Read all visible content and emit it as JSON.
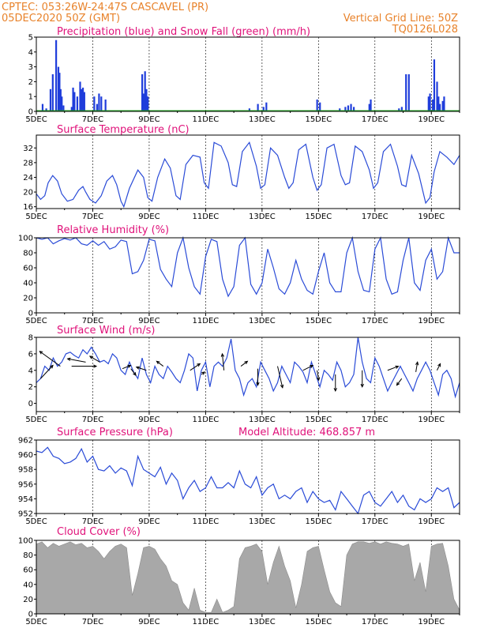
{
  "header": {
    "line1_left": "CPTEC:  053:26W-24:47S  CASCAVEL (PR)",
    "line2_left": "05DEC2020 50Z (GMT)",
    "line2_right": "Vertical Grid Line: 50Z",
    "line3_right": "TQ0126L028",
    "altitude_label": "Model Altitude: 468.857 m"
  },
  "x_ticks": [
    "5DEC",
    "7DEC",
    "9DEC",
    "11DEC",
    "13DEC",
    "15DEC",
    "17DEC",
    "19DEC"
  ],
  "colors": {
    "line": "#2a4bd7",
    "precip": "#1f3ddb",
    "snow": "#22aa22",
    "cloud": "#a8a8a8",
    "title": "#e0127a",
    "header": "#e8822a"
  },
  "chart_data": [
    {
      "id": "precipitation",
      "type": "bar",
      "title": "Precipitation (blue) and Snow Fall (green) (mm/h)",
      "x_unit": "days since 5DEC 00Z",
      "ylim": [
        0,
        5
      ],
      "yticks": [
        0,
        1,
        2,
        3,
        4,
        5
      ],
      "xlim": [
        0,
        15
      ],
      "series": [
        {
          "name": "Precipitation",
          "x": [
            0.22,
            0.35,
            0.5,
            0.58,
            0.7,
            0.78,
            0.82,
            0.86,
            0.9,
            0.96,
            1.25,
            1.3,
            1.35,
            1.45,
            1.55,
            1.6,
            1.65,
            1.7,
            2.05,
            2.15,
            2.22,
            2.3,
            2.45,
            3.75,
            3.8,
            3.85,
            3.9,
            3.95,
            7.55,
            7.85,
            8.05,
            8.15,
            9.95,
            10.05,
            10.75,
            10.95,
            11.05,
            11.15,
            11.25,
            11.8,
            11.85,
            12.85,
            12.95,
            13.1,
            13.2,
            13.9,
            13.95,
            14.05,
            14.1,
            14.2,
            14.25,
            14.3,
            14.4,
            14.45
          ],
          "values": [
            0.5,
            0.2,
            1.5,
            2.5,
            4.8,
            3.0,
            2.6,
            1.5,
            1.0,
            0.4,
            0.3,
            1.6,
            1.3,
            1.0,
            2.0,
            1.5,
            1.6,
            1.3,
            1.0,
            0.5,
            1.2,
            1.0,
            0.8,
            2.5,
            1.2,
            2.7,
            1.5,
            1.0,
            0.2,
            0.5,
            0.3,
            0.6,
            0.8,
            0.6,
            0.2,
            0.3,
            0.4,
            0.5,
            0.3,
            0.5,
            0.8,
            0.2,
            0.3,
            2.5,
            2.5,
            1.0,
            1.2,
            0.8,
            3.5,
            2.0,
            1.0,
            0.5,
            0.7,
            1.0
          ]
        },
        {
          "name": "Snow Fall",
          "x": [
            0,
            15
          ],
          "values": [
            0.05,
            0.05
          ]
        }
      ]
    },
    {
      "id": "temperature",
      "type": "line",
      "title": "Surface Temperature (nC)",
      "x_unit": "days since 5DEC 00Z",
      "ylim": [
        15.5,
        35.5
      ],
      "yticks": [
        16,
        20,
        24,
        28,
        32
      ],
      "xlim": [
        0,
        15
      ],
      "x": [
        0,
        0.15,
        0.3,
        0.42,
        0.58,
        0.75,
        0.9,
        1.1,
        1.3,
        1.5,
        1.65,
        1.75,
        1.9,
        2.1,
        2.3,
        2.5,
        2.7,
        2.85,
        3.0,
        3.1,
        3.3,
        3.6,
        3.8,
        3.95,
        4.1,
        4.3,
        4.55,
        4.75,
        4.95,
        5.1,
        5.3,
        5.55,
        5.8,
        5.95,
        6.1,
        6.3,
        6.55,
        6.8,
        6.95,
        7.1,
        7.3,
        7.55,
        7.8,
        7.95,
        8.1,
        8.3,
        8.55,
        8.8,
        8.95,
        9.1,
        9.3,
        9.55,
        9.8,
        9.95,
        10.1,
        10.3,
        10.55,
        10.8,
        10.95,
        11.1,
        11.3,
        11.55,
        11.8,
        11.95,
        12.1,
        12.3,
        12.55,
        12.8,
        12.95,
        13.1,
        13.3,
        13.55,
        13.8,
        13.95,
        14.1,
        14.3,
        14.55,
        14.8,
        15.0
      ],
      "values": [
        19.5,
        18.0,
        19.0,
        22.5,
        24.5,
        23.0,
        19.5,
        17.5,
        18.0,
        20.5,
        21.5,
        20.0,
        18.0,
        17.0,
        19.0,
        23.0,
        24.5,
        22.0,
        17.5,
        16.0,
        21.0,
        26.0,
        24.0,
        18.5,
        17.5,
        24.0,
        29.0,
        26.5,
        19.0,
        18.0,
        27.5,
        30.0,
        29.5,
        22.5,
        21.0,
        33.5,
        32.5,
        28.0,
        22.0,
        21.5,
        31.0,
        33.5,
        27.0,
        21.0,
        22.0,
        32.0,
        30.0,
        24.0,
        21.0,
        22.5,
        31.5,
        33.0,
        24.0,
        20.5,
        22.0,
        32.0,
        33.0,
        24.5,
        22.0,
        22.5,
        32.5,
        31.0,
        26.0,
        21.0,
        22.5,
        31.0,
        33.0,
        27.0,
        22.0,
        21.5,
        30.0,
        25.0,
        17.0,
        18.5,
        25.5,
        31.0,
        29.5,
        27.5,
        30.0
      ]
    },
    {
      "id": "humidity",
      "type": "line",
      "title": "Relative Humidity (%)",
      "x_unit": "days since 5DEC 00Z",
      "ylim": [
        0,
        100
      ],
      "yticks": [
        0,
        20,
        40,
        60,
        80,
        100
      ],
      "xlim": [
        0,
        15
      ],
      "x": [
        0,
        0.2,
        0.4,
        0.6,
        0.8,
        1.0,
        1.2,
        1.4,
        1.6,
        1.8,
        2.0,
        2.2,
        2.4,
        2.6,
        2.8,
        3.0,
        3.2,
        3.4,
        3.6,
        3.8,
        4.0,
        4.2,
        4.4,
        4.6,
        4.8,
        5.0,
        5.2,
        5.4,
        5.6,
        5.8,
        6.0,
        6.2,
        6.4,
        6.6,
        6.8,
        7.0,
        7.2,
        7.4,
        7.6,
        7.8,
        8.0,
        8.2,
        8.4,
        8.6,
        8.8,
        9.0,
        9.2,
        9.4,
        9.6,
        9.8,
        10.0,
        10.2,
        10.4,
        10.6,
        10.8,
        11.0,
        11.2,
        11.4,
        11.6,
        11.8,
        12.0,
        12.2,
        12.4,
        12.6,
        12.8,
        13.0,
        13.2,
        13.4,
        13.6,
        13.8,
        14.0,
        14.2,
        14.4,
        14.6,
        14.8,
        15.0
      ],
      "values": [
        100,
        98,
        100,
        92,
        96,
        99,
        97,
        100,
        92,
        90,
        96,
        90,
        95,
        85,
        88,
        97,
        95,
        52,
        55,
        70,
        98,
        96,
        58,
        45,
        35,
        80,
        100,
        60,
        35,
        25,
        75,
        98,
        95,
        45,
        22,
        35,
        90,
        100,
        38,
        25,
        40,
        85,
        60,
        32,
        25,
        40,
        70,
        45,
        30,
        25,
        55,
        80,
        40,
        28,
        28,
        80,
        100,
        55,
        30,
        28,
        85,
        100,
        45,
        25,
        28,
        70,
        100,
        40,
        30,
        70,
        85,
        45,
        55,
        100,
        80,
        80
      ]
    },
    {
      "id": "wind",
      "type": "line",
      "title": "Surface Wind (m/s)",
      "x_unit": "days since 5DEC 00Z",
      "ylim": [
        -1,
        8
      ],
      "yticks": [
        0,
        2,
        4,
        6,
        8
      ],
      "xlim": [
        0,
        15
      ],
      "x": [
        0,
        0.15,
        0.3,
        0.45,
        0.6,
        0.75,
        0.9,
        1.05,
        1.2,
        1.35,
        1.5,
        1.65,
        1.8,
        1.95,
        2.1,
        2.25,
        2.4,
        2.55,
        2.7,
        2.85,
        3.0,
        3.15,
        3.3,
        3.45,
        3.6,
        3.75,
        3.9,
        4.05,
        4.2,
        4.35,
        4.5,
        4.65,
        4.8,
        4.95,
        5.1,
        5.25,
        5.4,
        5.55,
        5.7,
        5.85,
        6.0,
        6.15,
        6.3,
        6.45,
        6.6,
        6.75,
        6.9,
        7.05,
        7.2,
        7.35,
        7.5,
        7.65,
        7.8,
        7.95,
        8.1,
        8.25,
        8.4,
        8.55,
        8.7,
        8.85,
        9.0,
        9.15,
        9.3,
        9.45,
        9.6,
        9.75,
        9.9,
        10.05,
        10.2,
        10.35,
        10.5,
        10.65,
        10.8,
        10.95,
        11.1,
        11.25,
        11.4,
        11.55,
        11.7,
        11.85,
        12.0,
        12.15,
        12.3,
        12.45,
        12.6,
        12.75,
        12.9,
        13.05,
        13.2,
        13.35,
        13.5,
        13.65,
        13.8,
        13.95,
        14.1,
        14.25,
        14.4,
        14.55,
        14.7,
        14.85,
        15.0
      ],
      "values": [
        2.5,
        3.0,
        4.5,
        4.0,
        5.5,
        4.5,
        5.0,
        6.0,
        6.2,
        5.8,
        5.5,
        6.5,
        6.0,
        6.8,
        6.0,
        5.0,
        5.2,
        4.8,
        6.0,
        5.5,
        4.0,
        3.5,
        5.0,
        3.8,
        3.0,
        5.5,
        3.5,
        2.5,
        4.5,
        3.5,
        3.0,
        4.5,
        3.8,
        3.0,
        2.5,
        4.0,
        6.0,
        5.5,
        1.5,
        4.0,
        5.0,
        2.0,
        4.5,
        5.0,
        4.5,
        5.5,
        7.8,
        4.0,
        3.0,
        1.0,
        2.5,
        3.0,
        2.0,
        5.0,
        4.0,
        3.0,
        1.5,
        2.5,
        4.5,
        3.5,
        2.5,
        5.0,
        4.5,
        3.8,
        2.5,
        5.0,
        3.5,
        2.0,
        4.0,
        3.5,
        2.8,
        5.0,
        4.0,
        2.0,
        2.5,
        3.5,
        8.0,
        5.0,
        3.0,
        2.5,
        5.5,
        4.5,
        3.0,
        1.5,
        2.5,
        3.5,
        4.5,
        3.5,
        2.5,
        1.5,
        3.0,
        4.0,
        5.0,
        4.0,
        2.5,
        1.0,
        3.5,
        4.0,
        3.0,
        0.8,
        2.5
      ],
      "arrows": {
        "x": [
          0.15,
          0.85,
          1.25,
          1.75,
          2.25,
          3.05,
          3.35,
          3.9,
          4.5,
          5.45,
          5.85,
          6.65,
          7.25,
          7.85,
          8.55,
          9.45,
          9.95,
          10.6,
          11.55,
          12.45,
          12.95,
          13.45,
          14.2
        ],
        "values": [
          3.0,
          4.5,
          4.5,
          5.0,
          5.0,
          4.2,
          4.2,
          4.0,
          4.5,
          4.0,
          3.5,
          4.0,
          4.5,
          4.2,
          4.5,
          4.0,
          4.0,
          3.5,
          4.0,
          4.0,
          3.0,
          3.8,
          4.0
        ],
        "u": [
          1.5,
          -2.5,
          3.0,
          -2.2,
          -1.2,
          1.0,
          0.6,
          -1.2,
          -0.8,
          1.2,
          0.4,
          -0.2,
          0.8,
          0.0,
          0.6,
          1.2,
          0.2,
          0.0,
          0.0,
          1.3,
          -0.6,
          0.2,
          0.4
        ],
        "v": [
          1.6,
          1.8,
          0.0,
          0.4,
          0.7,
          0.4,
          -0.8,
          0.4,
          0.6,
          0.8,
          0.3,
          2.0,
          0.6,
          -2.0,
          -2.6,
          0.6,
          -1.2,
          -2.0,
          -2.0,
          0.5,
          -0.8,
          1.2,
          0.8
        ]
      }
    },
    {
      "id": "pressure",
      "type": "line",
      "title": "Surface Pressure (hPa)",
      "x_unit": "days since 5DEC 00Z",
      "ylim": [
        952,
        962
      ],
      "yticks": [
        952,
        954,
        956,
        958,
        960,
        962
      ],
      "xlim": [
        0,
        15
      ],
      "x": [
        0,
        0.2,
        0.4,
        0.6,
        0.8,
        1.0,
        1.2,
        1.4,
        1.6,
        1.8,
        2.0,
        2.2,
        2.4,
        2.6,
        2.8,
        3.0,
        3.2,
        3.4,
        3.6,
        3.8,
        4.0,
        4.2,
        4.4,
        4.6,
        4.8,
        5.0,
        5.2,
        5.4,
        5.6,
        5.8,
        6.0,
        6.2,
        6.4,
        6.6,
        6.8,
        7.0,
        7.2,
        7.4,
        7.6,
        7.8,
        8.0,
        8.2,
        8.4,
        8.6,
        8.8,
        9.0,
        9.2,
        9.4,
        9.6,
        9.8,
        10.0,
        10.2,
        10.4,
        10.6,
        10.8,
        11.0,
        11.2,
        11.4,
        11.6,
        11.8,
        12.0,
        12.2,
        12.4,
        12.6,
        12.8,
        13.0,
        13.2,
        13.4,
        13.6,
        13.8,
        14.0,
        14.2,
        14.4,
        14.6,
        14.8,
        15.0
      ],
      "values": [
        960.5,
        960.3,
        961.0,
        959.8,
        959.5,
        958.8,
        959.0,
        959.5,
        960.8,
        959.0,
        959.8,
        958.0,
        957.8,
        958.5,
        957.5,
        958.2,
        957.8,
        955.8,
        959.8,
        958.0,
        957.5,
        957.0,
        958.3,
        956.0,
        957.5,
        956.5,
        954.0,
        955.5,
        956.5,
        955.0,
        955.5,
        957.0,
        955.5,
        955.5,
        956.2,
        955.5,
        957.8,
        956.0,
        955.5,
        957.0,
        954.5,
        955.5,
        956.0,
        954.0,
        954.5,
        954.0,
        955.0,
        955.5,
        953.5,
        955.0,
        954.0,
        953.5,
        953.8,
        952.5,
        955.0,
        954.0,
        953.0,
        952.0,
        954.5,
        955.0,
        953.5,
        953.0,
        954.0,
        955.0,
        953.5,
        954.5,
        953.0,
        952.5,
        954.0,
        953.5,
        954.0,
        955.5,
        955.0,
        955.5,
        952.8,
        953.5
      ]
    },
    {
      "id": "cloud",
      "type": "area",
      "title": "Cloud Cover (%)",
      "x_unit": "days since 5DEC 00Z",
      "ylim": [
        0,
        100
      ],
      "yticks": [
        0,
        20,
        40,
        60,
        80,
        100
      ],
      "xlim": [
        0,
        15
      ],
      "x": [
        0,
        0.2,
        0.4,
        0.6,
        0.8,
        1.0,
        1.2,
        1.4,
        1.6,
        1.8,
        2.0,
        2.2,
        2.4,
        2.6,
        2.8,
        3.0,
        3.2,
        3.4,
        3.6,
        3.8,
        4.0,
        4.2,
        4.4,
        4.6,
        4.8,
        5.0,
        5.2,
        5.4,
        5.6,
        5.8,
        6.0,
        6.2,
        6.4,
        6.6,
        6.8,
        7.0,
        7.2,
        7.4,
        7.6,
        7.8,
        8.0,
        8.2,
        8.4,
        8.6,
        8.8,
        9.0,
        9.2,
        9.4,
        9.6,
        9.8,
        10.0,
        10.2,
        10.4,
        10.6,
        10.8,
        11.0,
        11.2,
        11.4,
        11.6,
        11.8,
        12.0,
        12.2,
        12.4,
        12.6,
        12.8,
        13.0,
        13.2,
        13.4,
        13.6,
        13.8,
        14.0,
        14.2,
        14.4,
        14.6,
        14.8,
        15.0
      ],
      "values": [
        95,
        98,
        90,
        96,
        92,
        95,
        98,
        94,
        96,
        90,
        92,
        85,
        75,
        85,
        92,
        95,
        90,
        25,
        55,
        90,
        92,
        88,
        75,
        65,
        45,
        40,
        15,
        5,
        35,
        5,
        2,
        2,
        20,
        2,
        5,
        10,
        75,
        90,
        92,
        95,
        85,
        40,
        70,
        92,
        65,
        45,
        8,
        40,
        85,
        90,
        92,
        60,
        30,
        15,
        10,
        80,
        95,
        98,
        98,
        96,
        98,
        95,
        98,
        96,
        95,
        92,
        95,
        45,
        70,
        30,
        92,
        95,
        96,
        65,
        20,
        5
      ]
    }
  ]
}
